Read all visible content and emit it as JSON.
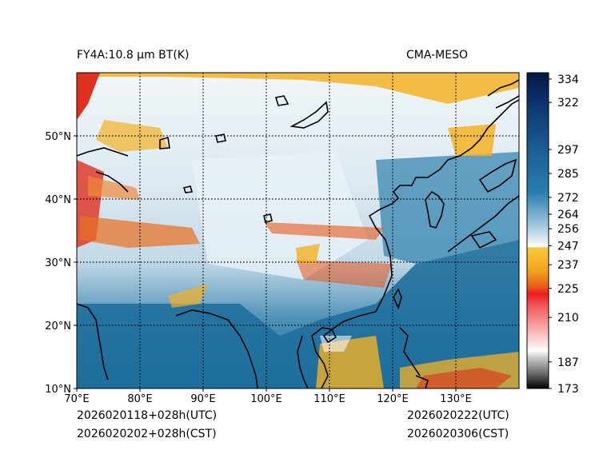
{
  "titles": {
    "left": "FY4A:10.8 μm BT(K)",
    "right": "CMA-MESO"
  },
  "footer": {
    "init_utc": "2026020118+028h(UTC)",
    "init_cst": "2026020202+028h(CST)",
    "valid_utc": "2026020222(UTC)",
    "valid_cst": "2026020306(CST)"
  },
  "map": {
    "lon_ticks": [
      "70°E",
      "80°E",
      "90°E",
      "100°E",
      "110°E",
      "120°E",
      "130°E"
    ],
    "lat_ticks": [
      "50°N",
      "40°N",
      "30°N",
      "20°N",
      "10°N"
    ],
    "lon_range": [
      70,
      140
    ],
    "lat_range": [
      10,
      60
    ]
  },
  "colorbar": {
    "min": 173,
    "max": 338,
    "ticks": [
      "334",
      "322",
      "297",
      "285",
      "272",
      "264",
      "256",
      "247",
      "237",
      "225",
      "210",
      "187",
      "173"
    ],
    "tick_values": [
      334,
      322,
      297,
      285,
      272,
      264,
      256,
      247,
      237,
      225,
      210,
      187,
      173
    ]
  },
  "colors": {
    "ocean": "#1f6f9c",
    "cold_cloud": "#f3b225",
    "very_cold": "#e0301e",
    "coast": "#000000"
  }
}
